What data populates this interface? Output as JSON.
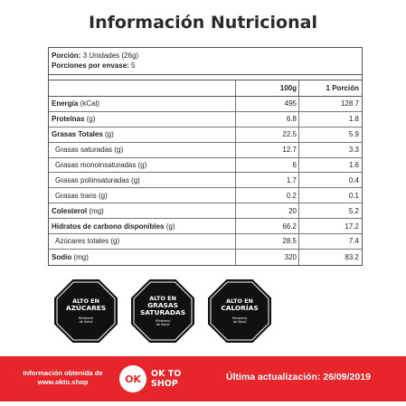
{
  "title": "Información Nutricional",
  "portion": {
    "portion_label": "Porción:",
    "portion_value": "3 Unidades (26g)",
    "per_package_label": "Porciones por envase:",
    "per_package_value": "5"
  },
  "table": {
    "col_100g": "100g",
    "col_portion": "1 Porción",
    "rows": [
      {
        "name": "Energía",
        "unit": "(kCal)",
        "v100": "495",
        "vport": "128.7"
      },
      {
        "name": "Proteínas",
        "unit": "(g)",
        "v100": "6.8",
        "vport": "1.8"
      },
      {
        "name": "Grasas Totales",
        "unit": "(g)",
        "v100": "22.5",
        "vport": "5.9"
      },
      {
        "label": "Grasas saturadas (g)",
        "v100": "12.7",
        "vport": "3.3"
      },
      {
        "label": "Grasas monoinsaturadas (g)",
        "v100": "6",
        "vport": "1.6"
      },
      {
        "label": "Grasas poliinsaturadas (g)",
        "v100": "1.7",
        "vport": "0.4"
      },
      {
        "label": "Grasas trans (g)",
        "v100": "0.2",
        "vport": "0.1"
      },
      {
        "name": "Colesterol",
        "unit": "(mg)",
        "v100": "20",
        "vport": "5.2"
      },
      {
        "name": "Hidratos de carbono disponibles",
        "unit": "(g)",
        "v100": "66.2",
        "vport": "17.2"
      },
      {
        "label": "Azúcares totales (g)",
        "v100": "28.5",
        "vport": "7.4"
      },
      {
        "name": "Sodio",
        "unit": "(mg)",
        "v100": "320",
        "vport": "83.2"
      }
    ]
  },
  "seals": [
    {
      "top": "ALTO EN",
      "main_1": "AZÚCARES",
      "main_2": "",
      "ministry_1": "Ministerio",
      "ministry_2": "de Salud"
    },
    {
      "top": "ALTO EN",
      "main_1": "GRASAS",
      "main_2": "SATURADAS",
      "ministry_1": "Ministerio",
      "ministry_2": "de Salud"
    },
    {
      "top": "ALTO EN",
      "main_1": "CALORÍAS",
      "main_2": "",
      "ministry_1": "Ministerio",
      "ministry_2": "de Salud"
    }
  ],
  "footer": {
    "source_line_1": "Información obtenida de",
    "source_line_2": "www.okto.shop",
    "logo_mark": "OK",
    "logo_line_1": "OK TO",
    "logo_line_2": "SHOP",
    "update": "Última actualización: 26/09/2019",
    "color": "#e6262b"
  }
}
